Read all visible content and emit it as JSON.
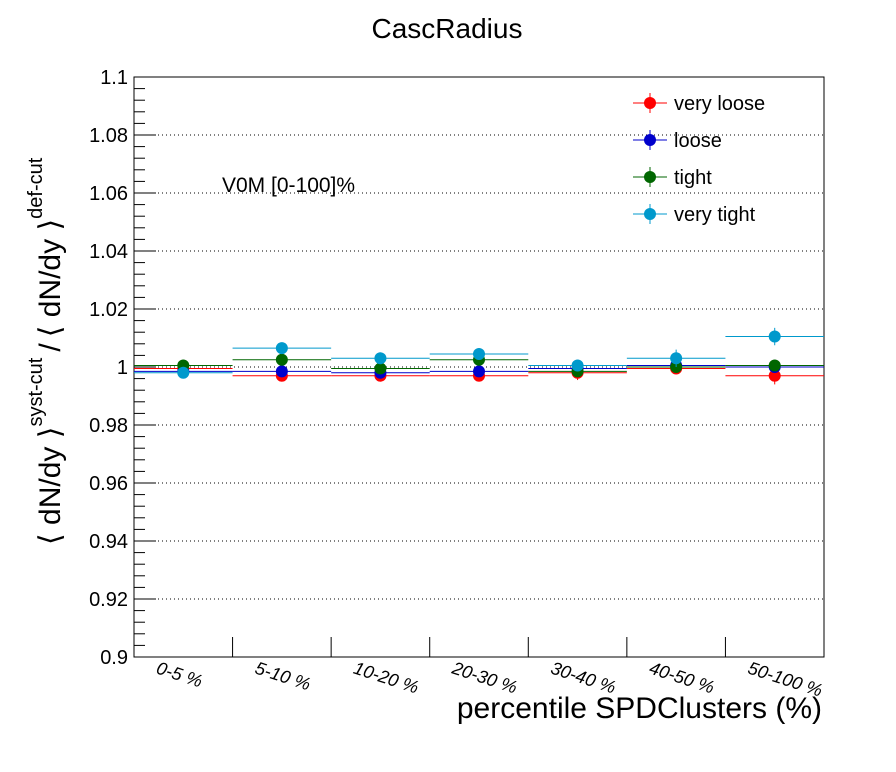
{
  "chart_data": {
    "type": "scatter",
    "title": "CascRadius",
    "xlabel": "percentile SPDClusters (%)",
    "ylabel_parts": {
      "num": "⟨ dN/dy ⟩",
      "num_sup": "syst-cut",
      "sep": "/",
      "den": "⟨ dN/dy ⟩",
      "den_sup": "def-cut"
    },
    "annotation": "V0M [0-100]%",
    "ylim": [
      0.9,
      1.1
    ],
    "yticks": [
      "0.9",
      "0.92",
      "0.94",
      "0.96",
      "0.98",
      "1",
      "1.02",
      "1.04",
      "1.06",
      "1.08",
      "1.1"
    ],
    "categories": [
      "0-5 %",
      "5-10 %",
      "10-20 %",
      "20-30 %",
      "30-40 %",
      "40-50 %",
      "50-100 %"
    ],
    "grid": "horizontal dotted",
    "legend_position": "top-right",
    "series": [
      {
        "name": "very loose",
        "color": "#ff0000",
        "values": [
          0.9995,
          0.997,
          0.997,
          0.997,
          0.998,
          0.9995,
          0.997
        ],
        "errors": [
          0.001,
          0.001,
          0.001,
          0.001,
          0.0025,
          0.001,
          0.003
        ]
      },
      {
        "name": "loose",
        "color": "#0000cc",
        "values": [
          0.9985,
          0.9985,
          0.998,
          0.9985,
          0.9995,
          1.0005,
          1.0
        ],
        "errors": [
          0.001,
          0.001,
          0.001,
          0.001,
          0.001,
          0.001,
          0.001
        ]
      },
      {
        "name": "tight",
        "color": "#006600",
        "values": [
          1.0005,
          1.0025,
          0.9995,
          1.0025,
          0.9985,
          1.0,
          1.0005
        ],
        "errors": [
          0.001,
          0.001,
          0.001,
          0.001,
          0.001,
          0.001,
          0.001
        ]
      },
      {
        "name": "very tight",
        "color": "#0099cc",
        "values": [
          0.998,
          1.0065,
          1.003,
          1.0045,
          1.0005,
          1.003,
          1.0105
        ],
        "errors": [
          0.001,
          0.0015,
          0.0015,
          0.0015,
          0.0015,
          0.003,
          0.003
        ]
      }
    ]
  }
}
